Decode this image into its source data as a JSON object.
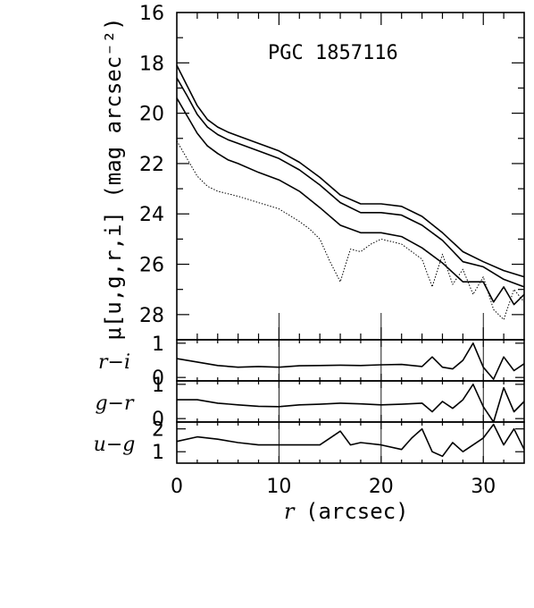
{
  "chart_data": {
    "type": "line",
    "annotation": "PGC 1857116",
    "xlabel_italic": "r",
    "xlabel_rest": "(arcsec)",
    "xlim": [
      0,
      34
    ],
    "xticks": [
      0,
      10,
      20,
      30
    ],
    "xtick_labels": [
      "0",
      "10",
      "20",
      "30"
    ],
    "panels": [
      {
        "id": "surface-brightness",
        "ylabel": "μ[u,g,r,i] (mag arcsec⁻²)",
        "ylim": [
          29,
          16
        ],
        "yticks": [
          16,
          18,
          20,
          22,
          24,
          26,
          28
        ],
        "ytick_labels": [
          "16",
          "18",
          "20",
          "22",
          "24",
          "26",
          "28"
        ],
        "series": [
          {
            "style": "solid",
            "x": [
              0,
              1,
              2,
              3,
              4,
              5,
              6,
              8,
              10,
              12,
              14,
              16,
              18,
              20,
              22,
              24,
              26,
              28,
              30,
              32,
              34
            ],
            "y": [
              18.1,
              18.9,
              19.7,
              20.25,
              20.55,
              20.75,
              20.9,
              21.2,
              21.5,
              21.95,
              22.55,
              23.25,
              23.6,
              23.6,
              23.7,
              24.1,
              24.75,
              25.5,
              25.9,
              26.25,
              26.5
            ]
          },
          {
            "style": "solid",
            "x": [
              0,
              1,
              2,
              3,
              4,
              5,
              6,
              8,
              10,
              12,
              14,
              16,
              18,
              20,
              22,
              24,
              26,
              28,
              30,
              32,
              34
            ],
            "y": [
              18.6,
              19.3,
              20.05,
              20.55,
              20.85,
              21.05,
              21.2,
              21.5,
              21.8,
              22.25,
              22.85,
              23.55,
              23.95,
              23.95,
              24.05,
              24.45,
              25.05,
              25.9,
              26.1,
              26.6,
              26.9
            ]
          },
          {
            "style": "solid",
            "x": [
              0,
              1,
              2,
              3,
              4,
              5,
              6,
              8,
              10,
              12,
              14,
              16,
              18,
              20,
              22,
              24,
              26,
              28,
              30,
              31,
              32,
              33,
              34
            ],
            "y": [
              19.4,
              20.1,
              20.8,
              21.3,
              21.6,
              21.85,
              22.0,
              22.35,
              22.65,
              23.1,
              23.75,
              24.45,
              24.75,
              24.75,
              24.9,
              25.35,
              25.95,
              26.7,
              26.7,
              27.5,
              26.9,
              27.6,
              27.2
            ]
          },
          {
            "style": "dotted",
            "x": [
              0,
              1,
              2,
              3,
              4,
              5,
              6,
              8,
              10,
              12,
              13,
              14,
              15,
              16,
              17,
              18,
              19,
              20,
              22,
              24,
              25,
              26,
              27,
              28,
              29,
              30,
              31,
              32,
              33,
              34
            ],
            "y": [
              21.1,
              21.8,
              22.5,
              22.9,
              23.1,
              23.2,
              23.3,
              23.55,
              23.8,
              24.3,
              24.6,
              25.0,
              25.9,
              26.7,
              25.4,
              25.5,
              25.2,
              25.0,
              25.2,
              25.8,
              26.9,
              25.6,
              26.8,
              26.2,
              27.2,
              26.5,
              27.8,
              28.2,
              27.0,
              27.5
            ]
          }
        ]
      },
      {
        "id": "r-minus-i",
        "ylabel": "r−i",
        "ylim": [
          -0.1,
          1.1
        ],
        "yticks": [
          0,
          1
        ],
        "ytick_labels": [
          "0",
          "1"
        ],
        "series": [
          {
            "style": "solid",
            "x": [
              0,
              2,
              4,
              6,
              8,
              10,
              12,
              14,
              16,
              18,
              20,
              22,
              24,
              25,
              26,
              27,
              28,
              29,
              30,
              31,
              32,
              33,
              34
            ],
            "y": [
              0.55,
              0.45,
              0.35,
              0.3,
              0.32,
              0.3,
              0.34,
              0.35,
              0.36,
              0.35,
              0.37,
              0.38,
              0.32,
              0.6,
              0.3,
              0.25,
              0.5,
              1.0,
              0.3,
              -0.05,
              0.6,
              0.2,
              0.4
            ]
          }
        ]
      },
      {
        "id": "g-minus-r",
        "ylabel": "g−r",
        "ylim": [
          -0.1,
          1.1
        ],
        "yticks": [
          0,
          1
        ],
        "ytick_labels": [
          "0",
          "1"
        ],
        "series": [
          {
            "style": "solid",
            "x": [
              0,
              2,
              4,
              6,
              8,
              10,
              12,
              14,
              16,
              18,
              20,
              22,
              24,
              25,
              26,
              27,
              28,
              29,
              30,
              31,
              32,
              33,
              34
            ],
            "y": [
              0.55,
              0.55,
              0.45,
              0.4,
              0.36,
              0.35,
              0.4,
              0.42,
              0.45,
              0.43,
              0.4,
              0.42,
              0.45,
              0.2,
              0.5,
              0.3,
              0.55,
              1.0,
              0.35,
              -0.1,
              0.9,
              0.2,
              0.5
            ]
          }
        ]
      },
      {
        "id": "u-minus-g",
        "ylabel": "u−g",
        "ylim": [
          0.5,
          2.3
        ],
        "yticks": [
          1,
          2
        ],
        "ytick_labels": [
          "1",
          "2"
        ],
        "series": [
          {
            "style": "solid",
            "x": [
              0,
              2,
              4,
              6,
              8,
              10,
              12,
              14,
              15,
              16,
              17,
              18,
              20,
              22,
              23,
              24,
              25,
              26,
              27,
              28,
              29,
              30,
              31,
              32,
              33,
              34
            ],
            "y": [
              1.45,
              1.65,
              1.55,
              1.4,
              1.3,
              1.3,
              1.3,
              1.3,
              1.6,
              1.9,
              1.3,
              1.4,
              1.3,
              1.1,
              1.6,
              2.0,
              1.0,
              0.8,
              1.4,
              1.0,
              1.3,
              1.6,
              2.2,
              1.3,
              2.0,
              1.1
            ]
          }
        ]
      }
    ]
  }
}
